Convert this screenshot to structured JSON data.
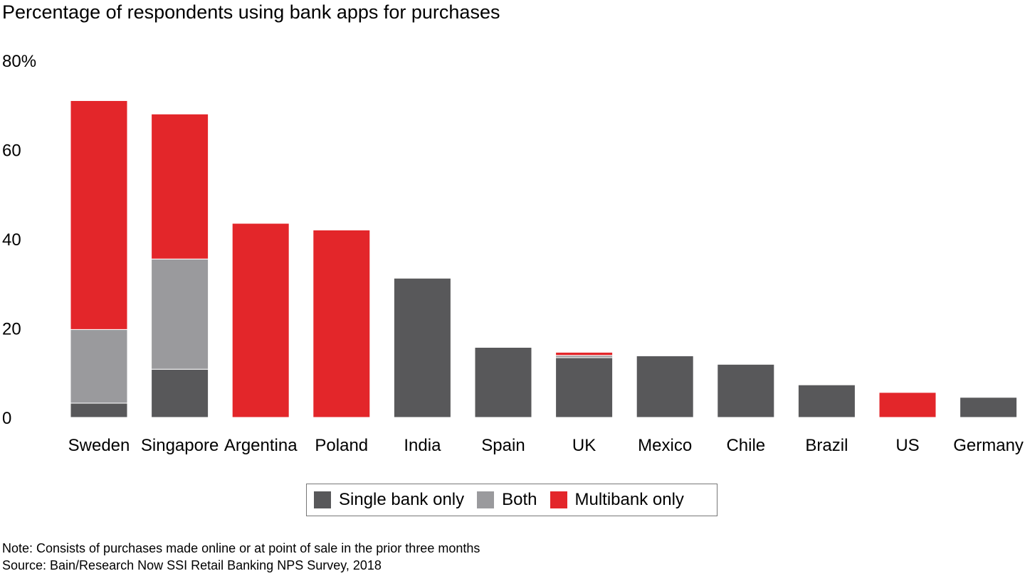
{
  "colors": {
    "single": "#58585a",
    "both": "#9a9a9d",
    "multi": "#e3262a"
  },
  "chart_data": {
    "type": "bar",
    "stacked": true,
    "title": "Percentage of respondents using bank apps for purchases",
    "xlabel": "",
    "ylabel": "",
    "ylim": [
      0,
      80
    ],
    "y_ticks": [
      "0",
      "20",
      "40",
      "60",
      "80%"
    ],
    "y_tick_values": [
      0,
      20,
      40,
      60,
      80
    ],
    "grid": false,
    "legend_position": "bottom-center",
    "categories": [
      "Sweden",
      "Singapore",
      "Argentina",
      "Poland",
      "India",
      "Spain",
      "UK",
      "Mexico",
      "Chile",
      "Brazil",
      "US",
      "Germany"
    ],
    "series": [
      {
        "name": "Single bank only",
        "color_key": "single",
        "values": [
          3.2,
          10.8,
          0,
          0,
          31.2,
          15.7,
          13.4,
          13.8,
          11.9,
          7.3,
          0,
          4.5
        ]
      },
      {
        "name": "Both",
        "color_key": "both",
        "values": [
          16.5,
          24.7,
          0,
          0,
          0,
          0,
          0.5,
          0,
          0,
          0,
          0,
          0
        ]
      },
      {
        "name": "Multibank only",
        "color_key": "multi",
        "values": [
          51.3,
          32.5,
          43.5,
          42.0,
          0,
          0,
          0.7,
          0,
          0,
          0,
          5.6,
          0
        ]
      }
    ]
  },
  "notes": {
    "note": "Note: Consists of purchases made online or at point of sale in the prior three months",
    "source": "Source: Bain/Research Now SSI Retail Banking NPS Survey, 2018"
  }
}
